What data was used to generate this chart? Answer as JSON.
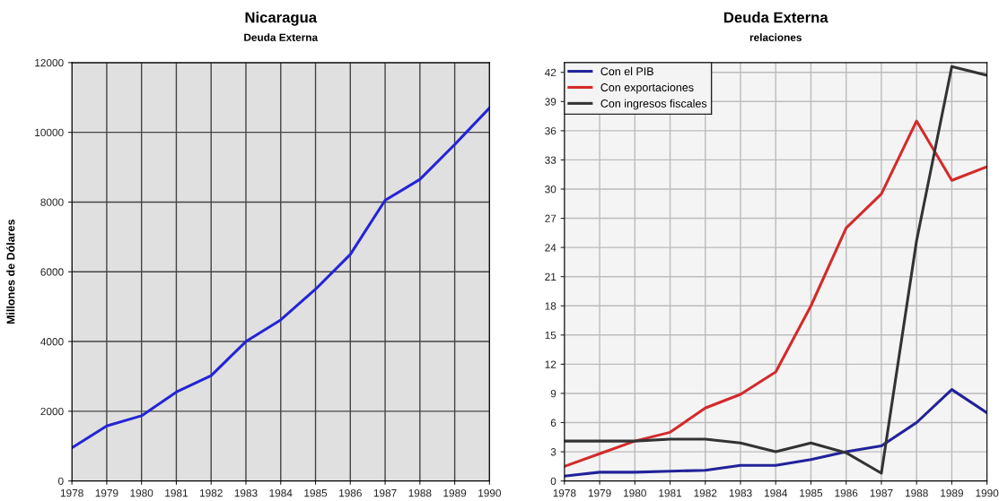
{
  "chart_data": [
    {
      "type": "line",
      "title": "Nicaragua",
      "subtitle": "Deuda Externa",
      "ylabel": "Millones de Dólares",
      "categories": [
        "1978",
        "1979",
        "1980",
        "1981",
        "1982",
        "1983",
        "1984",
        "1985",
        "1986",
        "1987",
        "1988",
        "1989",
        "1990"
      ],
      "series": [
        {
          "color": "#2424d8",
          "values": [
            950,
            1580,
            1870,
            2550,
            3020,
            4000,
            4620,
            5500,
            6500,
            8050,
            8650,
            9650,
            10700
          ]
        }
      ],
      "ylim": [
        0,
        12000
      ],
      "yticks": [
        0,
        2000,
        4000,
        6000,
        8000,
        10000,
        12000
      ],
      "grid": true,
      "legend": false
    },
    {
      "type": "line",
      "title": "Deuda Externa",
      "subtitle": "relaciones",
      "categories": [
        "1978",
        "1979",
        "1980",
        "1981",
        "1982",
        "1983",
        "1984",
        "1985",
        "1986",
        "1987",
        "1988",
        "1989",
        "1990"
      ],
      "series": [
        {
          "name": "Con el PIB",
          "color": "#22229a",
          "values": [
            0.5,
            0.9,
            0.9,
            1.0,
            1.1,
            1.6,
            1.6,
            2.2,
            3.0,
            3.6,
            6.0,
            9.4,
            7.0
          ]
        },
        {
          "name": "Con exportaciones",
          "color": "#d42a2a",
          "values": [
            1.5,
            2.8,
            4.1,
            5.0,
            7.5,
            8.9,
            11.2,
            18.0,
            26.0,
            29.5,
            37.0,
            30.9,
            32.3
          ]
        },
        {
          "name": "Con ingresos fiscales",
          "color": "#333333",
          "values": [
            4.1,
            4.1,
            4.1,
            4.3,
            4.3,
            3.9,
            3.0,
            3.9,
            2.9,
            0.8,
            24.7,
            42.6,
            41.7
          ]
        }
      ],
      "ylim": [
        0,
        43
      ],
      "yticks": [
        0,
        3,
        6,
        9,
        12,
        15,
        18,
        21,
        24,
        27,
        30,
        33,
        36,
        39,
        42
      ],
      "grid": true,
      "legend": "top left"
    }
  ]
}
